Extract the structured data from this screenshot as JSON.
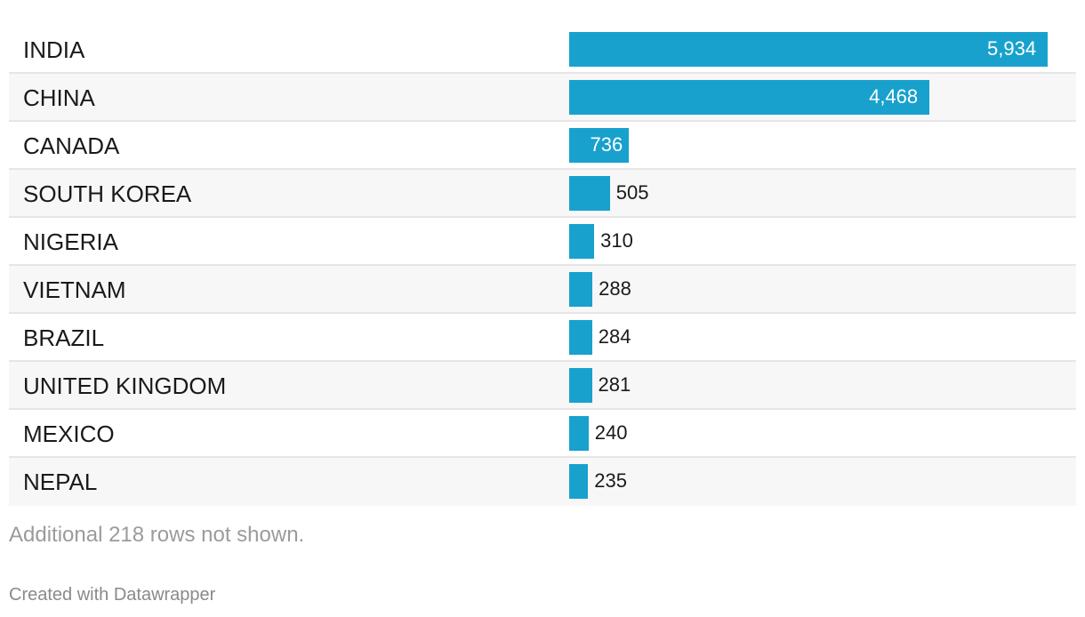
{
  "chart_data": {
    "type": "bar",
    "orientation": "horizontal",
    "categories": [
      "INDIA",
      "CHINA",
      "CANADA",
      "SOUTH KOREA",
      "NIGERIA",
      "VIETNAM",
      "BRAZIL",
      "UNITED KINGDOM",
      "MEXICO",
      "NEPAL"
    ],
    "values": [
      5934,
      4468,
      736,
      505,
      310,
      288,
      284,
      281,
      240,
      235
    ],
    "value_labels": [
      "5,934",
      "4,468",
      "736",
      "505",
      "310",
      "288",
      "284",
      "281",
      "240",
      "235"
    ],
    "xlim": [
      0,
      5934
    ],
    "bar_color": "#18a1cd",
    "grid": false,
    "legend": "none"
  },
  "notes": "Additional 218 rows not shown.",
  "credit": "Created with Datawrapper"
}
